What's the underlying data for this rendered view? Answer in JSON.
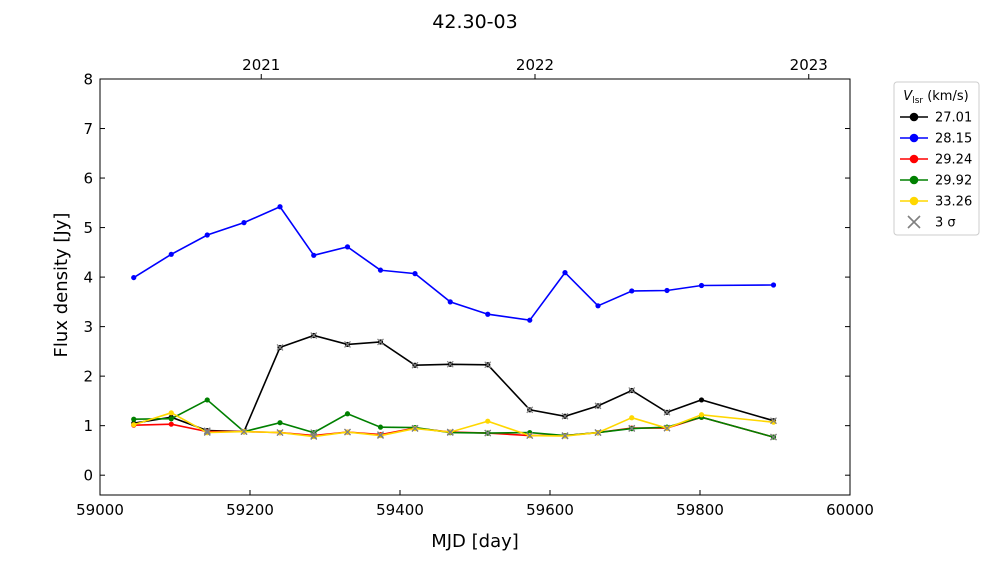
{
  "chart_data": {
    "type": "line",
    "title": "42.30-03",
    "xlabel": "MJD [day]",
    "ylabel": "Flux density [Jy]",
    "xlim": [
      59000,
      60000
    ],
    "ylim": [
      -0.4,
      8
    ],
    "xticks": [
      "59000",
      "59200",
      "59400",
      "59600",
      "59800",
      "60000"
    ],
    "yticks": [
      "0",
      "1",
      "2",
      "3",
      "4",
      "5",
      "6",
      "7",
      "8"
    ],
    "top_axis": {
      "ticks": [
        {
          "label": "2021",
          "mjd": 59215
        },
        {
          "label": "2022",
          "mjd": 59580
        },
        {
          "label": "2023",
          "mjd": 59945
        }
      ]
    },
    "grid": false,
    "legend": {
      "placement": "outside-right",
      "title_main": "V",
      "title_sub": "lsr",
      "title_unit": " (km/s)",
      "sigma_label": "3 σ",
      "sigma_color": "#808080"
    },
    "x": [
      59045,
      59095,
      59143,
      59192,
      59240,
      59285,
      59330,
      59374,
      59420,
      59467,
      59517,
      59573,
      59620,
      59664,
      59709,
      59756,
      59802,
      59898
    ],
    "series": [
      {
        "name": "27.01",
        "color": "#000000",
        "values": [
          1.05,
          1.17,
          0.9,
          0.88,
          2.58,
          2.82,
          2.64,
          2.69,
          2.22,
          2.24,
          2.23,
          1.32,
          1.19,
          1.4,
          1.71,
          1.27,
          1.52,
          1.1
        ]
      },
      {
        "name": "28.15",
        "color": "#0000ff",
        "values": [
          3.99,
          4.46,
          4.85,
          5.1,
          5.42,
          4.44,
          4.61,
          4.14,
          4.07,
          3.5,
          3.25,
          3.13,
          4.09,
          3.42,
          3.72,
          3.73,
          3.83,
          3.84
        ]
      },
      {
        "name": "29.24",
        "color": "#ff0000",
        "values": [
          1.01,
          1.03,
          0.88,
          0.88,
          0.86,
          0.8,
          0.87,
          0.82,
          0.95,
          0.87,
          0.85,
          0.8,
          0.8,
          0.86,
          0.95,
          0.95,
          1.17,
          0.77
        ]
      },
      {
        "name": "29.92",
        "color": "#008000",
        "values": [
          1.13,
          1.14,
          1.52,
          0.88,
          1.06,
          0.86,
          1.24,
          0.97,
          0.96,
          0.86,
          0.85,
          0.86,
          0.8,
          0.86,
          0.94,
          0.97,
          1.17,
          0.77
        ]
      },
      {
        "name": "33.26",
        "color": "#ffd700",
        "values": [
          1.02,
          1.26,
          0.86,
          0.88,
          0.86,
          0.78,
          0.87,
          0.8,
          0.94,
          0.87,
          1.09,
          0.8,
          0.79,
          0.86,
          1.16,
          0.95,
          1.22,
          1.07
        ]
      }
    ],
    "upper_limits": [
      {
        "series": "27.01",
        "x": [
          59143,
          59240,
          59285,
          59330,
          59374,
          59420,
          59467,
          59517,
          59573,
          59620,
          59664,
          59709,
          59756,
          59898
        ]
      },
      {
        "series": "29.24",
        "x": [
          59143,
          59192,
          59240,
          59285,
          59330,
          59374,
          59420,
          59467,
          59517,
          59573,
          59620,
          59664,
          59709,
          59756,
          59898
        ]
      },
      {
        "series": "29.92",
        "x": [
          59192,
          59285,
          59467,
          59517,
          59620,
          59664,
          59709,
          59898
        ]
      },
      {
        "series": "33.26",
        "x": [
          59143,
          59192,
          59240,
          59285,
          59330,
          59374,
          59420,
          59467,
          59573,
          59620,
          59664,
          59756
        ]
      }
    ]
  }
}
